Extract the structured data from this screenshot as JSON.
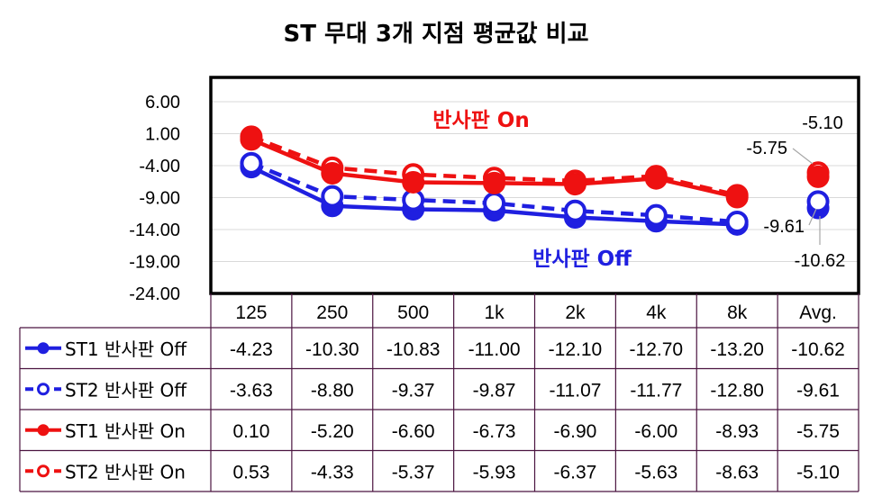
{
  "chart_data": {
    "type": "line",
    "title": "ST 무대 3개 지점 평균값 비교",
    "categories": [
      "125",
      "250",
      "500",
      "1k",
      "2k",
      "4k",
      "8k",
      "Avg."
    ],
    "ylim": [
      -24,
      6
    ],
    "yticks": [
      "6.00",
      "1.00",
      "-4.00",
      "-9.00",
      "-14.00",
      "-19.00",
      "-24.00"
    ],
    "grid": true,
    "legend": "data-table",
    "series": [
      {
        "name": "ST1 반사판 Off",
        "values": [
          -4.23,
          -10.3,
          -10.83,
          -11.0,
          -12.1,
          -12.7,
          -13.2,
          -10.62
        ],
        "labels": [
          "-4.23",
          "-10.30",
          "-10.83",
          "-11.00",
          "-12.10",
          "-12.70",
          "-13.20",
          "-10.62"
        ],
        "color": "#1f1fe0",
        "style": "solid",
        "marker": "filled"
      },
      {
        "name": "ST2 반사판 Off",
        "values": [
          -3.63,
          -8.8,
          -9.37,
          -9.87,
          -11.07,
          -11.77,
          -12.8,
          -9.61
        ],
        "labels": [
          "-3.63",
          "-8.80",
          "-9.37",
          "-9.87",
          "-11.07",
          "-11.77",
          "-12.80",
          "-9.61"
        ],
        "color": "#1f1fe0",
        "style": "dashed",
        "marker": "hollow"
      },
      {
        "name": "ST1 반사판 On",
        "values": [
          0.1,
          -5.2,
          -6.6,
          -6.73,
          -6.9,
          -6.0,
          -8.93,
          -5.75
        ],
        "labels": [
          "0.10",
          "-5.20",
          "-6.60",
          "-6.73",
          "-6.90",
          "-6.00",
          "-8.93",
          "-5.75"
        ],
        "color": "#ee1111",
        "style": "solid",
        "marker": "filled"
      },
      {
        "name": "ST2 반사판 On",
        "values": [
          0.53,
          -4.33,
          -5.37,
          -5.93,
          -6.37,
          -5.63,
          -8.63,
          -5.1
        ],
        "labels": [
          "0.53",
          "-4.33",
          "-5.37",
          "-5.93",
          "-6.37",
          "-5.63",
          "-8.63",
          "-5.10"
        ],
        "color": "#ee1111",
        "style": "dashed",
        "marker": "hollow"
      }
    ],
    "annotations": [
      {
        "text": "반사판 On",
        "color": "#ee1111"
      },
      {
        "text": "반사판 Off",
        "color": "#1f1fe0"
      }
    ],
    "avg_labels": [
      "-5.10",
      "-5.75",
      "-9.61",
      "-10.62"
    ]
  }
}
